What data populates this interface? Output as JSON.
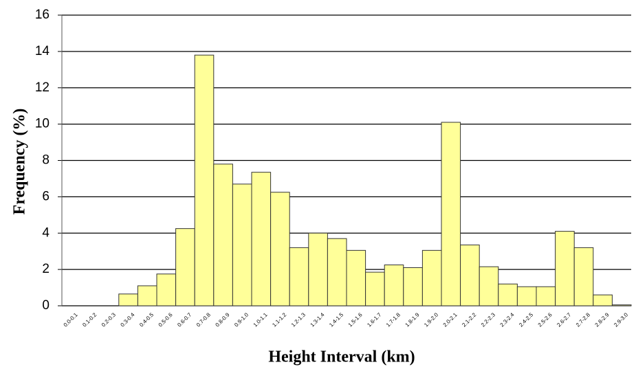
{
  "chart_data": {
    "type": "bar",
    "x_label": "Height Interval (km)",
    "y_label": "Frequency (%)",
    "categories": [
      "0.0-0.1",
      "0.1-0.2",
      "0.2-0.3",
      "0.3-0.4",
      "0.4-0.5",
      "0.5-0.6",
      "0.6-0.7",
      "0.7-0.8",
      "0.8-0.9",
      "0.9-1.0",
      "1.0-1.1",
      "1.1-1.2",
      "1.2-1.3",
      "1.3-1.4",
      "1.4-1.5",
      "1.5-1.6",
      "1.6-1.7",
      "1.7-1.8",
      "1.8-1.9",
      "1.9-2.0",
      "2.0-2.1",
      "2.1-2.2",
      "2.2-2.3",
      "2.3-2.4",
      "2.4-2.5",
      "2.5-2.6",
      "2.6-2.7",
      "2.7-2.8",
      "2.8-2.9",
      "2.9-3.0"
    ],
    "values": [
      0,
      0,
      0,
      0.65,
      1.1,
      1.75,
      4.25,
      13.8,
      7.8,
      6.7,
      7.35,
      6.25,
      3.2,
      4.0,
      3.7,
      3.05,
      1.85,
      2.25,
      2.1,
      3.05,
      10.1,
      3.35,
      2.15,
      1.2,
      1.05,
      1.05,
      4.1,
      3.2,
      0.6,
      0.05
    ],
    "color": "#ffff99",
    "ylim": [
      0,
      16
    ],
    "yticks": [
      0,
      2,
      4,
      6,
      8,
      10,
      12,
      14,
      16
    ],
    "grid": true
  }
}
